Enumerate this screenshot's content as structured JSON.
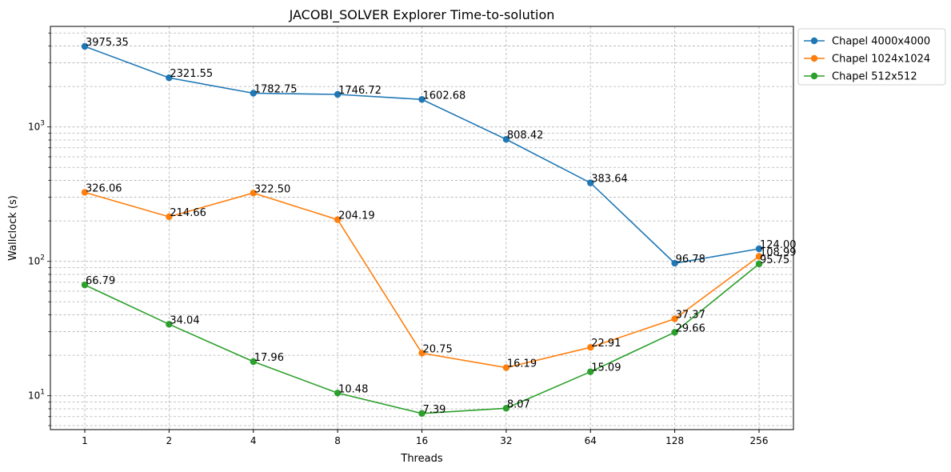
{
  "chart_data": {
    "type": "line",
    "title": "JACOBI_SOLVER Explorer Time-to-solution",
    "xlabel": "Threads",
    "ylabel": "Wallclock (s)",
    "yscale": "log",
    "ylim": [
      5.6,
      5600
    ],
    "grid": true,
    "legend_position": "outside top-right",
    "categories": [
      "1",
      "2",
      "4",
      "8",
      "16",
      "32",
      "64",
      "128",
      "256"
    ],
    "y_tick_labels": [
      "10^1",
      "10^2",
      "10^3"
    ],
    "series": [
      {
        "name": "Chapel 4000x4000",
        "color": "#1f77b4",
        "values": [
          3975.35,
          2321.55,
          1782.75,
          1746.72,
          1602.68,
          808.42,
          383.64,
          96.78,
          124.0
        ],
        "labels": [
          "3975.35",
          "2321.55",
          "1782.75",
          "1746.72",
          "1602.68",
          "808.42",
          "383.64",
          "96.78",
          "124.00"
        ]
      },
      {
        "name": "Chapel 1024x1024",
        "color": "#ff7f0e",
        "values": [
          326.06,
          214.66,
          322.5,
          204.19,
          20.75,
          16.19,
          22.91,
          37.37,
          108.99
        ],
        "labels": [
          "326.06",
          "214.66",
          "322.50",
          "204.19",
          "20.75",
          "16.19",
          "22.91",
          "37.37",
          "108.99"
        ]
      },
      {
        "name": "Chapel 512x512",
        "color": "#2ca02c",
        "values": [
          66.79,
          34.04,
          17.96,
          10.48,
          7.39,
          8.07,
          15.09,
          29.66,
          95.75
        ],
        "labels": [
          "66.79",
          "34.04",
          "17.96",
          "10.48",
          "7.39",
          "8.07",
          "15.09",
          "29.66",
          "95.75"
        ]
      }
    ]
  }
}
